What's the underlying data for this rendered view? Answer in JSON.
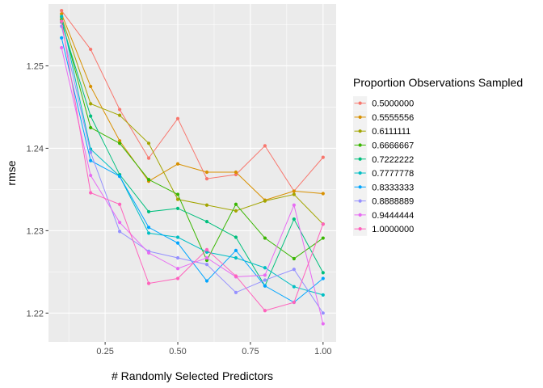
{
  "chart_data": {
    "type": "line",
    "xlabel": "# Randomly Selected Predictors",
    "ylabel": "rmse",
    "xlim": [
      0.055,
      1.045
    ],
    "ylim": [
      1.2165,
      1.2575
    ],
    "x_ticks": [
      0.25,
      0.5,
      0.75,
      1.0
    ],
    "x_tick_labels": [
      "0.25",
      "0.50",
      "0.75",
      "1.00"
    ],
    "y_ticks": [
      1.22,
      1.23,
      1.24,
      1.25
    ],
    "y_tick_labels": [
      "1.22",
      "1.23",
      "1.24",
      "1.25"
    ],
    "grid": true,
    "legend": {
      "title": "Proportion Observations Sampled",
      "position": "right"
    },
    "x": [
      0.1,
      0.2,
      0.3,
      0.4,
      0.5,
      0.6,
      0.7,
      0.8,
      0.9,
      1.0
    ],
    "series": [
      {
        "name": "0.5000000",
        "color": "#F8766D",
        "values": [
          1.2567,
          1.252,
          1.2447,
          1.2388,
          1.2436,
          1.2363,
          1.2368,
          1.2403,
          1.2348,
          1.2389
        ]
      },
      {
        "name": "0.5555556",
        "color": "#D89000",
        "values": [
          1.2563,
          1.2475,
          1.2409,
          1.236,
          1.2381,
          1.2371,
          1.2371,
          1.2337,
          1.2348,
          1.2345
        ]
      },
      {
        "name": "0.6111111",
        "color": "#A3A500",
        "values": [
          1.2559,
          1.2454,
          1.244,
          1.2406,
          1.2338,
          1.2331,
          1.2324,
          1.2336,
          1.2344,
          1.2308
        ]
      },
      {
        "name": "0.6666667",
        "color": "#39B600",
        "values": [
          1.2556,
          1.2425,
          1.2406,
          1.2362,
          1.2344,
          1.2264,
          1.2332,
          1.2291,
          1.2266,
          1.2291
        ]
      },
      {
        "name": "0.7222222",
        "color": "#00BF7D",
        "values": [
          1.2553,
          1.2439,
          1.2368,
          1.2323,
          1.2327,
          1.2311,
          1.2292,
          1.2233,
          1.2314,
          1.2249
        ]
      },
      {
        "name": "0.7777778",
        "color": "#00BFC4",
        "values": [
          1.256,
          1.2399,
          1.2366,
          1.2297,
          1.2292,
          1.2274,
          1.2267,
          1.2255,
          1.2232,
          1.2222
        ]
      },
      {
        "name": "0.8333333",
        "color": "#00A5FF",
        "values": [
          1.2534,
          1.2385,
          1.2366,
          1.2304,
          1.2285,
          1.2239,
          1.2276,
          1.2233,
          1.2213,
          1.2242
        ]
      },
      {
        "name": "0.8888889",
        "color": "#9590FF",
        "values": [
          1.2548,
          1.2395,
          1.2299,
          1.2275,
          1.2267,
          1.2259,
          1.2225,
          1.224,
          1.2253,
          1.22
        ]
      },
      {
        "name": "0.9444444",
        "color": "#E76BF3",
        "values": [
          1.2522,
          1.2367,
          1.231,
          1.2273,
          1.2254,
          1.2267,
          1.2244,
          1.2246,
          1.2331,
          1.2187
        ]
      },
      {
        "name": "1.0000000",
        "color": "#FF62BC",
        "values": [
          1.2554,
          1.2346,
          1.2332,
          1.2236,
          1.2242,
          1.2277,
          1.2245,
          1.2203,
          1.2213,
          1.2308
        ]
      }
    ]
  }
}
